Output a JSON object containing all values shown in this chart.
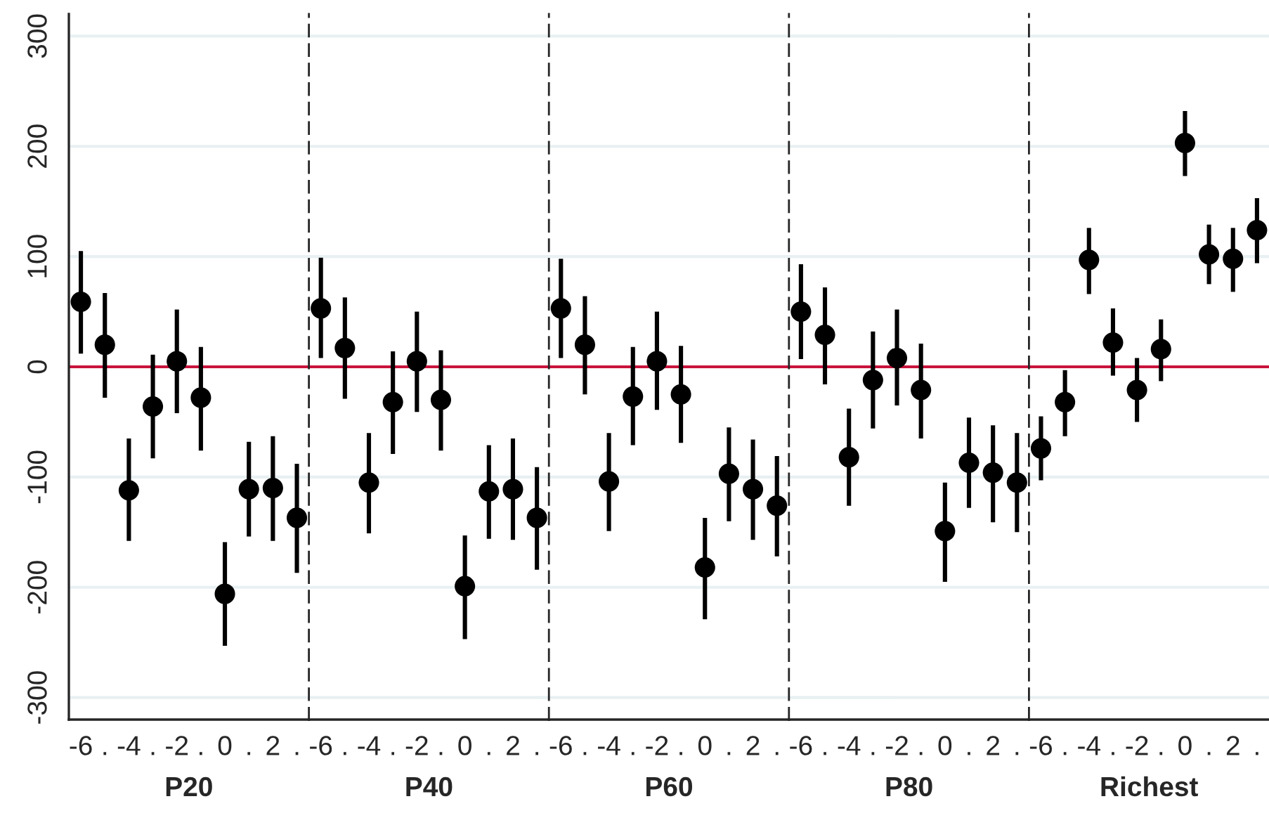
{
  "chart_data": [
    {
      "type": "scatter",
      "xlabel": "P20",
      "categories": [
        "-6",
        ".",
        "-4",
        ".",
        "-2",
        ".",
        "0",
        ".",
        "2",
        "."
      ],
      "values": [
        59,
        20,
        -112,
        -36,
        5,
        -28,
        -206,
        -111,
        -110,
        -137
      ],
      "errors": [
        [
          12,
          105
        ],
        [
          -28,
          67
        ],
        [
          -158,
          -65
        ],
        [
          -83,
          11
        ],
        [
          -42,
          52
        ],
        [
          -76,
          18
        ],
        [
          -253,
          -159
        ],
        [
          -154,
          -68
        ],
        [
          -158,
          -63
        ],
        [
          -187,
          -88
        ]
      ],
      "color": "#000000",
      "marker": "circle",
      "ylim": [
        -320,
        320
      ],
      "yticks": [
        -300,
        -200,
        -100,
        0,
        100,
        200,
        300
      ],
      "grid": "y",
      "ref_lines": [
        {
          "axis": "y",
          "value": 0,
          "color": "#c8143c"
        }
      ]
    },
    {
      "type": "scatter",
      "xlabel": "P40",
      "categories": [
        "-6",
        ".",
        "-4",
        ".",
        "-2",
        ".",
        "0",
        ".",
        "2",
        "."
      ],
      "values": [
        53,
        17,
        -105,
        -32,
        5,
        -30,
        -199,
        -113,
        -111,
        -137
      ],
      "errors": [
        [
          8,
          99
        ],
        [
          -29,
          63
        ],
        [
          -151,
          -60
        ],
        [
          -79,
          14
        ],
        [
          -41,
          50
        ],
        [
          -76,
          15
        ],
        [
          -247,
          -153
        ],
        [
          -156,
          -71
        ],
        [
          -157,
          -65
        ],
        [
          -184,
          -91
        ]
      ],
      "color": "#000000",
      "marker": "circle",
      "ylim": [
        -320,
        320
      ],
      "yticks": [
        -300,
        -200,
        -100,
        0,
        100,
        200,
        300
      ],
      "grid": "y",
      "tick_labels": "x",
      "ref_lines": [
        {
          "axis": "y",
          "value": 0,
          "color": "#c8143c"
        }
      ]
    },
    {
      "type": "scatter",
      "xlabel": "P60",
      "categories": [
        "-6",
        ".",
        "-4",
        ".",
        "-2",
        ".",
        "0",
        ".",
        "2",
        "."
      ],
      "values": [
        53,
        20,
        -104,
        -27,
        5,
        -25,
        -182,
        -97,
        -111,
        -126
      ],
      "errors": [
        [
          8,
          98
        ],
        [
          -25,
          64
        ],
        [
          -149,
          -60
        ],
        [
          -71,
          18
        ],
        [
          -39,
          50
        ],
        [
          -69,
          19
        ],
        [
          -229,
          -137
        ],
        [
          -140,
          -55
        ],
        [
          -157,
          -66
        ],
        [
          -172,
          -81
        ]
      ],
      "color": "#000000",
      "marker": "circle",
      "ylim": [
        -320,
        320
      ],
      "yticks": [
        -300,
        -200,
        -100,
        0,
        100,
        200,
        300
      ],
      "grid": "y",
      "tick_labels": "x",
      "ref_lines": [
        {
          "axis": "y",
          "value": 0,
          "color": "#c8143c"
        }
      ]
    },
    {
      "type": "scatter",
      "xlabel": "P80",
      "categories": [
        "-6",
        ".",
        "-4",
        ".",
        "-2",
        ".",
        "0",
        ".",
        "2",
        "."
      ],
      "values": [
        50,
        29,
        -82,
        -12,
        8,
        -21,
        -149,
        -87,
        -96,
        -105
      ],
      "errors": [
        [
          7,
          93
        ],
        [
          -16,
          72
        ],
        [
          -126,
          -38
        ],
        [
          -56,
          32
        ],
        [
          -35,
          52
        ],
        [
          -65,
          21
        ],
        [
          -195,
          -105
        ],
        [
          -128,
          -46
        ],
        [
          -141,
          -53
        ],
        [
          -150,
          -60
        ]
      ],
      "color": "#000000",
      "marker": "circle",
      "ylim": [
        -320,
        320
      ],
      "yticks": [
        -300,
        -200,
        -100,
        0,
        100,
        200,
        300
      ],
      "grid": "y",
      "tick_labels": "x",
      "ref_lines": [
        {
          "axis": "y",
          "value": 0,
          "color": "#c8143c"
        }
      ]
    },
    {
      "type": "scatter",
      "xlabel": "Richest",
      "categories": [
        "-6",
        ".",
        "-4",
        ".",
        "-2",
        ".",
        "0",
        ".",
        "2",
        "."
      ],
      "values": [
        -74,
        -32,
        97,
        22,
        -21,
        16,
        203,
        102,
        98,
        124
      ],
      "errors": [
        [
          -103,
          -45
        ],
        [
          -63,
          -3
        ],
        [
          66,
          126
        ],
        [
          -8,
          53
        ],
        [
          -50,
          8
        ],
        [
          -13,
          43
        ],
        [
          173,
          232
        ],
        [
          75,
          129
        ],
        [
          68,
          126
        ],
        [
          94,
          153
        ]
      ],
      "color": "#000000",
      "marker": "circle",
      "ylim": [
        -320,
        320
      ],
      "yticks": [
        -300,
        -200,
        -100,
        0,
        100,
        200,
        300
      ],
      "grid": "y",
      "tick_labels": "x",
      "ref_lines": [
        {
          "axis": "y",
          "value": 0,
          "color": "#c8143c"
        }
      ]
    }
  ]
}
